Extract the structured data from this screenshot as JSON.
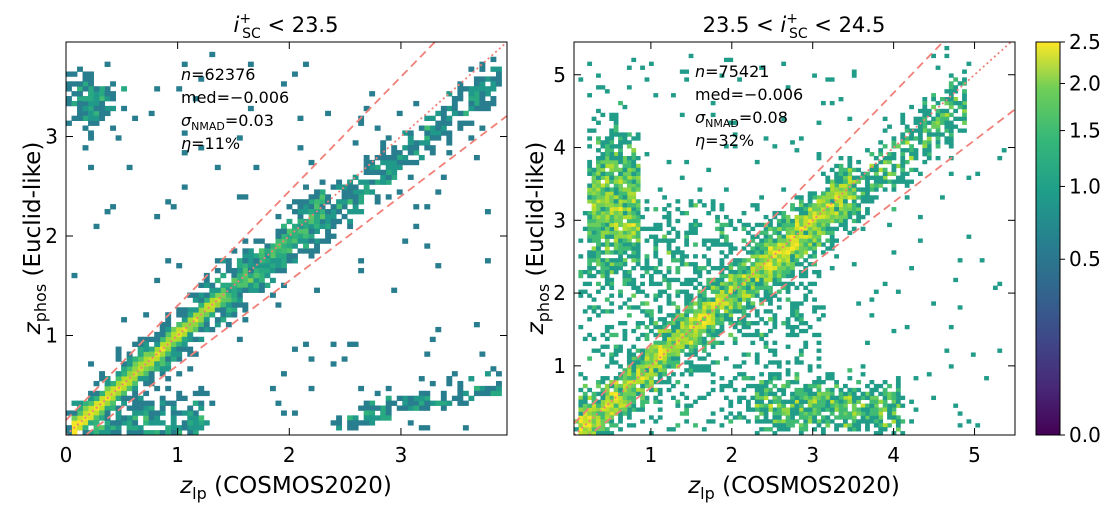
{
  "chart_data": [
    {
      "type": "heatmap",
      "title": "i_SC^+ < 23.5",
      "title_parts": {
        "var": "i",
        "sup": "+",
        "sub": "SC",
        "cmp": " < 23.5"
      },
      "xlabel": {
        "var": "z",
        "sub": "lp",
        "rest": " (COSMOS2020)"
      },
      "ylabel": {
        "var": "z",
        "sub": "phos",
        "rest": " (Euclid-like)"
      },
      "xlim": [
        0,
        3.95
      ],
      "ylim": [
        0,
        3.95
      ],
      "xticks": [
        "0",
        "1",
        "2",
        "3"
      ],
      "xtick_values": [
        0,
        1,
        2,
        3
      ],
      "yticks": [
        "1",
        "2",
        "3"
      ],
      "ytick_values": [
        1,
        2,
        3
      ],
      "stats": {
        "n": {
          "label": "n",
          "value": "=62376"
        },
        "med": {
          "label": "med",
          "value": "=−0.006"
        },
        "sigma": {
          "label": "σ",
          "sub": "NMAD",
          "value": "=0.03"
        },
        "eta": {
          "label": "η",
          "value": "=11%"
        }
      },
      "one_to_one_line": "z_phos = z_lp",
      "outlier_bounds": [
        0.15,
        -0.15
      ]
    },
    {
      "type": "heatmap",
      "title": "23.5 < i_SC^+ < 24.5",
      "title_parts": {
        "pre": "23.5 < ",
        "var": "i",
        "sup": "+",
        "sub": "SC",
        "cmp": " < 24.5"
      },
      "xlabel": {
        "var": "z",
        "sub": "lp",
        "rest": " (COSMOS2020)"
      },
      "ylabel": {
        "var": "z",
        "sub": "phos",
        "rest": " (Euclid-like)"
      },
      "xlim": [
        0.05,
        5.5
      ],
      "ylim": [
        0.05,
        5.45
      ],
      "xticks": [
        "1",
        "2",
        "3",
        "4",
        "5"
      ],
      "xtick_values": [
        1,
        2,
        3,
        4,
        5
      ],
      "yticks": [
        "1",
        "2",
        "3",
        "4",
        "5"
      ],
      "ytick_values": [
        1,
        2,
        3,
        4,
        5
      ],
      "stats": {
        "n": {
          "label": "n",
          "value": "=75421"
        },
        "med": {
          "label": "med",
          "value": "=−0.006"
        },
        "sigma": {
          "label": "σ",
          "sub": "NMAD",
          "value": "=0.08"
        },
        "eta": {
          "label": "η",
          "value": "=32%"
        }
      },
      "one_to_one_line": "z_phos = z_lp",
      "outlier_bounds": [
        0.15,
        -0.15
      ]
    }
  ],
  "colorbar": {
    "colormap": "viridis",
    "ticks": [
      "0.0",
      "0.5",
      "1.0",
      "1.5",
      "2.0",
      "2.5"
    ],
    "tick_values": [
      0.0,
      0.5,
      1.0,
      1.5,
      2.0,
      2.5
    ],
    "range": [
      0,
      2.5
    ],
    "scale": "sqrt"
  },
  "colors": {
    "dashed_lines": "#f08078",
    "dotted_line": "#f08078",
    "sparse": "#440154",
    "dense": "#fde725"
  }
}
